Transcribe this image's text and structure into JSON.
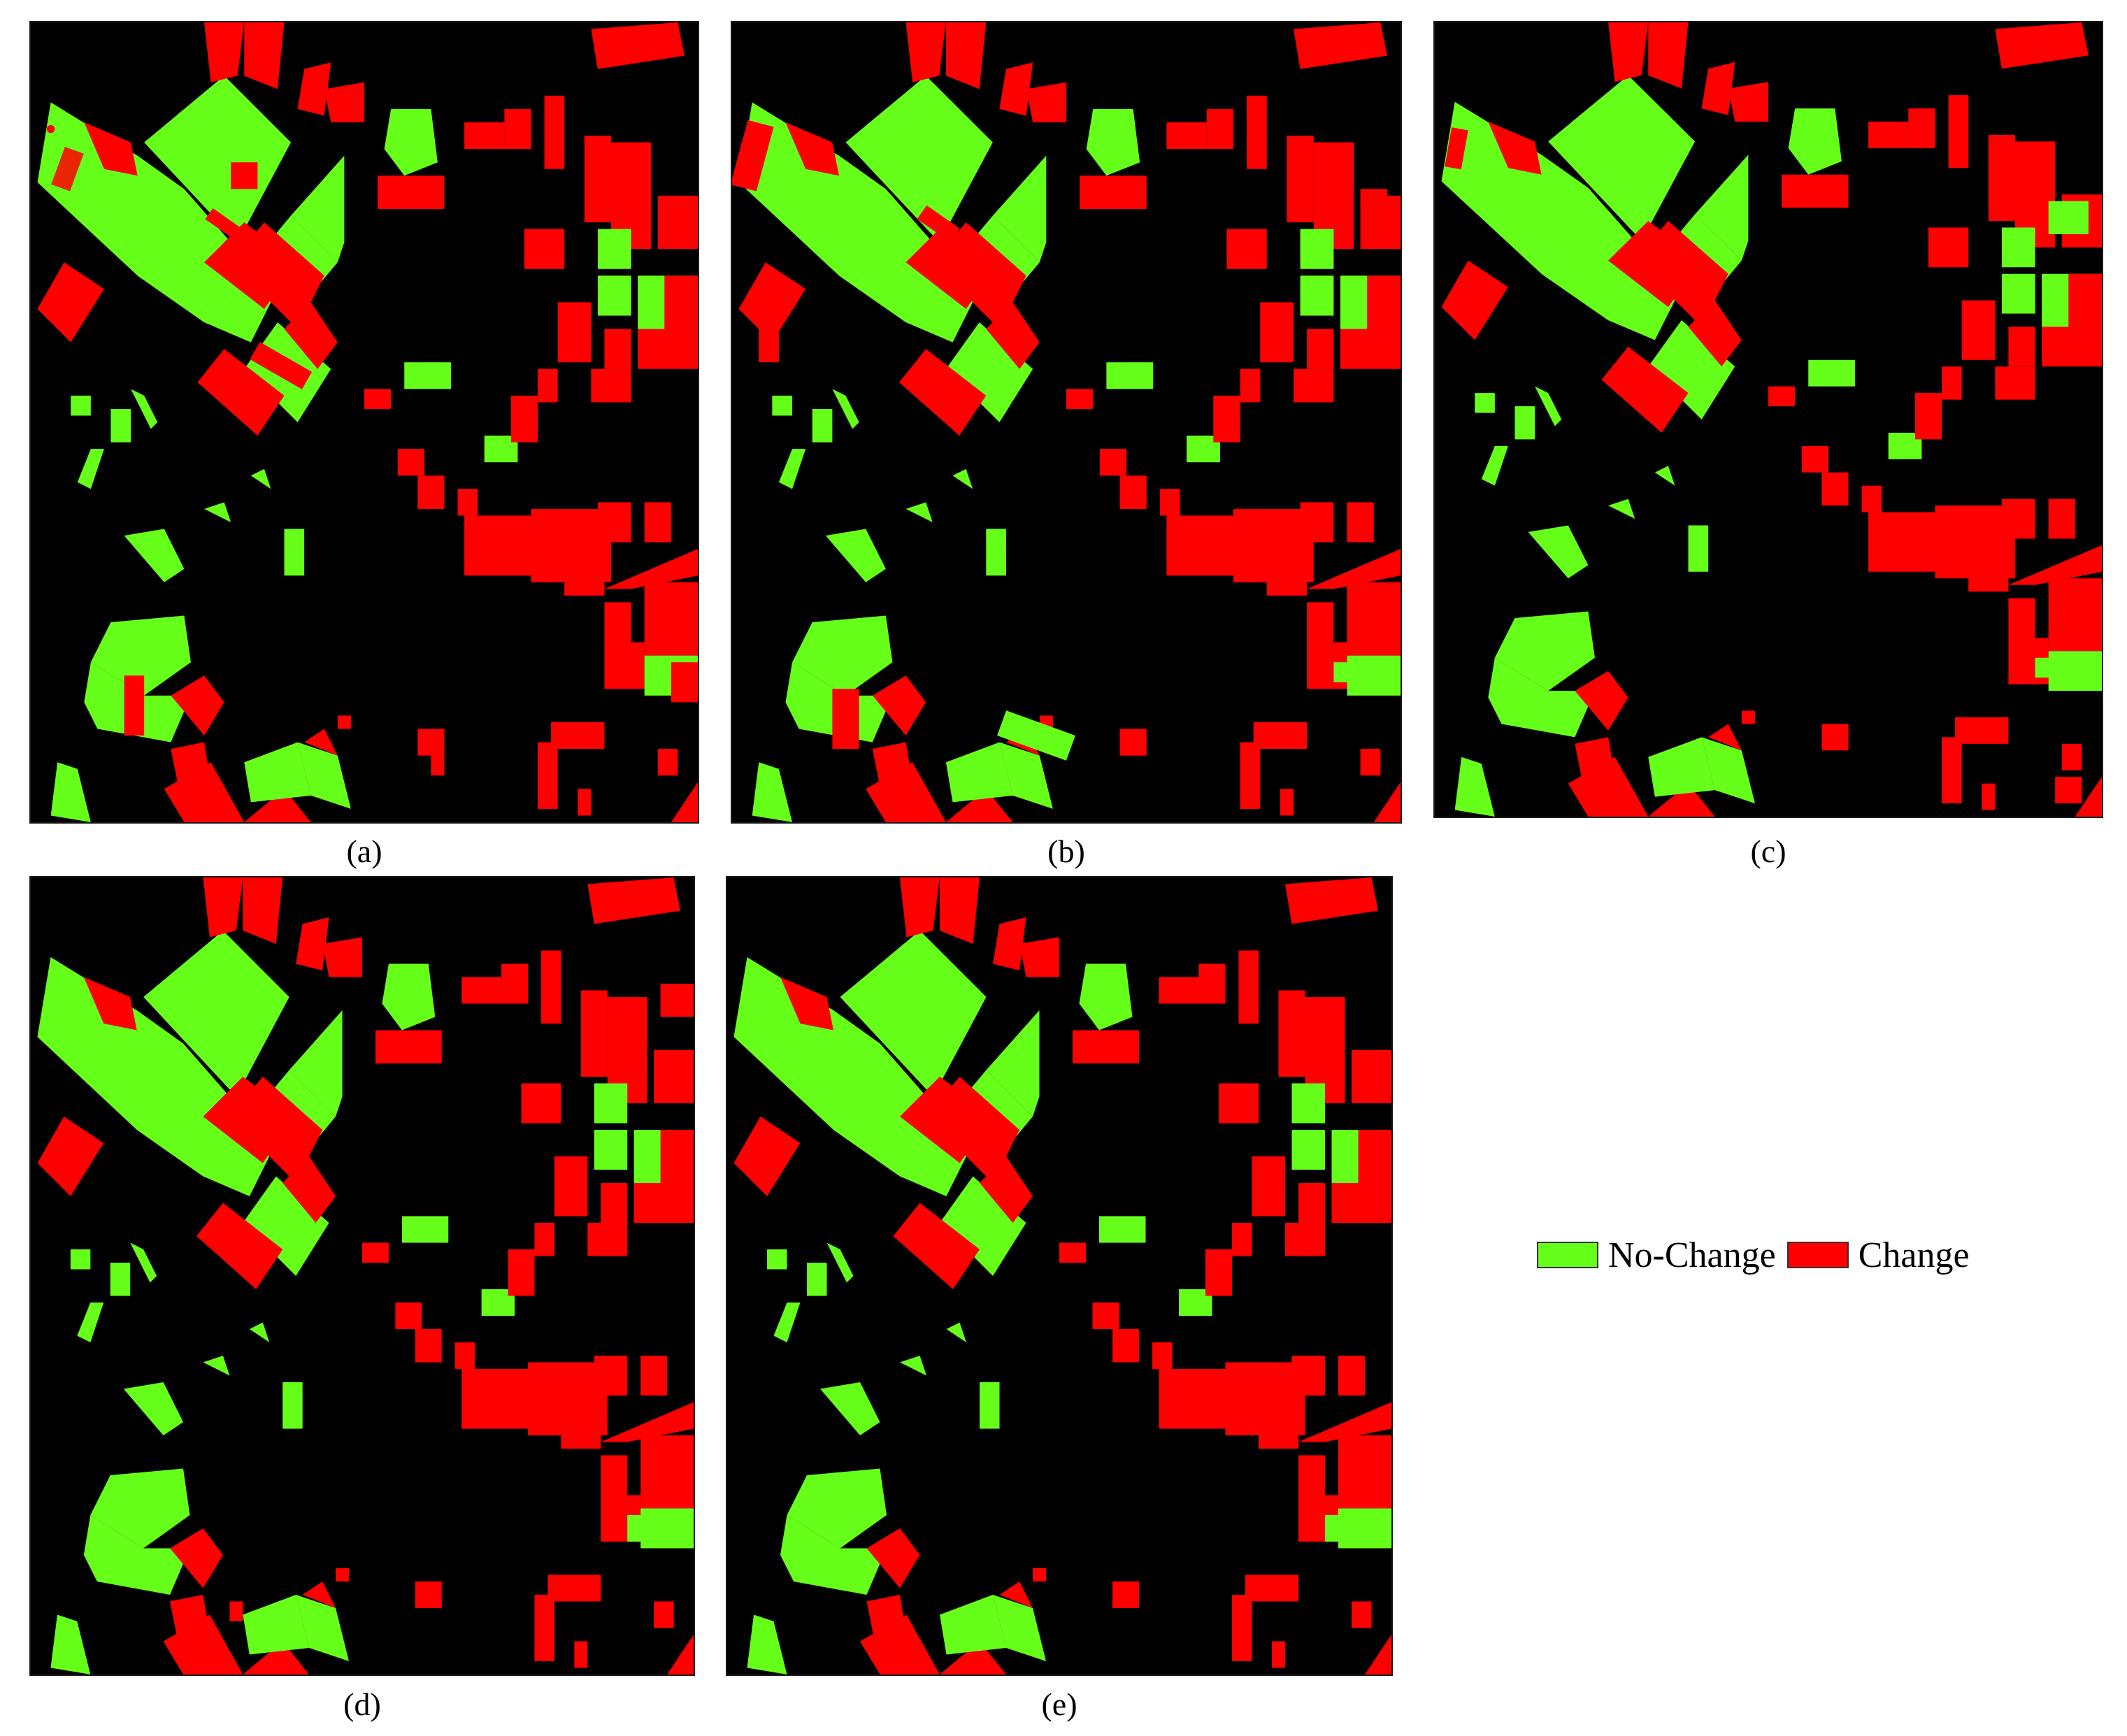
{
  "colors": {
    "background": "#000000",
    "no_change": "#66ff1a",
    "change": "#ff0000"
  },
  "panels": [
    {
      "id": "a",
      "caption": "(a)"
    },
    {
      "id": "b",
      "caption": "(b)"
    },
    {
      "id": "c",
      "caption": "(c)"
    },
    {
      "id": "d",
      "caption": "(d)"
    },
    {
      "id": "e",
      "caption": "(e)"
    }
  ],
  "legend": {
    "items": [
      {
        "label": "No-Change",
        "color": "#66ff1a"
      },
      {
        "label": "Change",
        "color": "#ff0000"
      }
    ]
  }
}
